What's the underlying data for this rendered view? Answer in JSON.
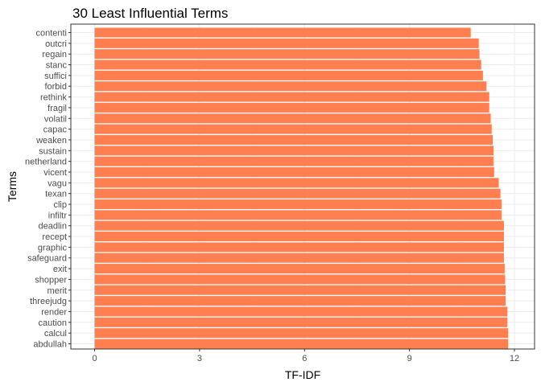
{
  "chart_data": {
    "type": "bar",
    "orientation": "horizontal",
    "title": "30 Least Influential Terms",
    "xlabel": "TF-IDF",
    "ylabel": "Terms",
    "xlim": [
      0,
      12
    ],
    "xticks": [
      0,
      3,
      6,
      9,
      12
    ],
    "grid": true,
    "legend": "none",
    "bar_color": "#FF7F50",
    "categories": [
      "contenti",
      "outcri",
      "regain",
      "stanc",
      "suffici",
      "forbid",
      "rethink",
      "fragil",
      "volatil",
      "capac",
      "weaken",
      "sustain",
      "netherland",
      "vicent",
      "vagu",
      "texan",
      "clip",
      "infiltr",
      "deadlin",
      "recept",
      "graphic",
      "safeguard",
      "exit",
      "shopper",
      "merit",
      "threejudg",
      "render",
      "caution",
      "calcul",
      "abdullah"
    ],
    "values": [
      10.75,
      10.98,
      11.0,
      11.05,
      11.1,
      11.2,
      11.28,
      11.28,
      11.32,
      11.35,
      11.38,
      11.4,
      11.4,
      11.42,
      11.55,
      11.6,
      11.63,
      11.63,
      11.7,
      11.7,
      11.7,
      11.7,
      11.72,
      11.73,
      11.75,
      11.75,
      11.8,
      11.8,
      11.82,
      11.82
    ]
  }
}
